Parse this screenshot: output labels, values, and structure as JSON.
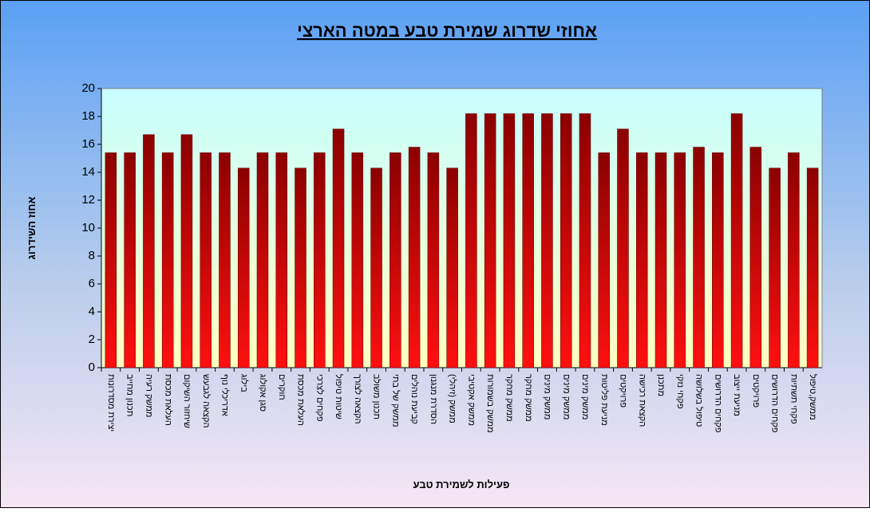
{
  "chart_data": {
    "type": "bar",
    "title": "אחוזי שדרוג שמירת טבע במטה הארצי",
    "y_label": "אחוז השידרוג",
    "x_label": "פעילות לשמירת טבע",
    "categories": [
      "יצירת מסדרונות",
      "תכנון מחייב",
      "ממשק רעיה",
      "העלאת מכסת",
      "שיחזור השיקום",
      "הקצאה לגבעש",
      "אדריכלי נוף",
      "בילוג",
      "סגן אקולוג",
      "חוקרים",
      "העלאת מכסת",
      "פקחים לצרכי",
      "שיטות טיפול",
      "הקצאה לצורך",
      "תכנון משולב",
      "ממשק של בתי",
      "קביעת נוהלים",
      "הסדרת מנגנון",
      "ממשק (זיהלי)",
      "ממשק אקטיבי",
      "ממשק בשמורות",
      "ממשק מחקר",
      "ממשק מחקר",
      "ממשק מינים",
      "ממשק מינים",
      "ממשק מינים",
      "מניעת פליטות",
      "פרויקטים",
      "הקצאת רכישה",
      "מתכנן",
      "פקחי נזקי",
      "טיפול בשלושה",
      "פקחים הדרושים",
      "מניעת ייצוב",
      "פרויקטים",
      "פקחים הדרושים",
      "פקחי תשתיות",
      "ממשק,טיפול"
    ],
    "values": [
      15.4,
      15.4,
      16.7,
      15.4,
      16.7,
      15.4,
      15.4,
      14.3,
      15.4,
      15.4,
      14.3,
      15.4,
      17.1,
      15.4,
      14.3,
      15.4,
      15.8,
      15.4,
      14.3,
      18.2,
      18.2,
      18.2,
      18.2,
      18.2,
      18.2,
      18.2,
      15.4,
      17.1,
      15.4,
      15.4,
      15.4,
      15.8,
      15.4,
      18.2,
      15.8,
      14.3,
      15.4,
      14.3
    ],
    "color": "#8b0000",
    "ylim": [
      0,
      20
    ],
    "yticks": [
      0,
      2,
      4,
      6,
      8,
      10,
      12,
      14,
      16,
      18,
      20
    ]
  }
}
